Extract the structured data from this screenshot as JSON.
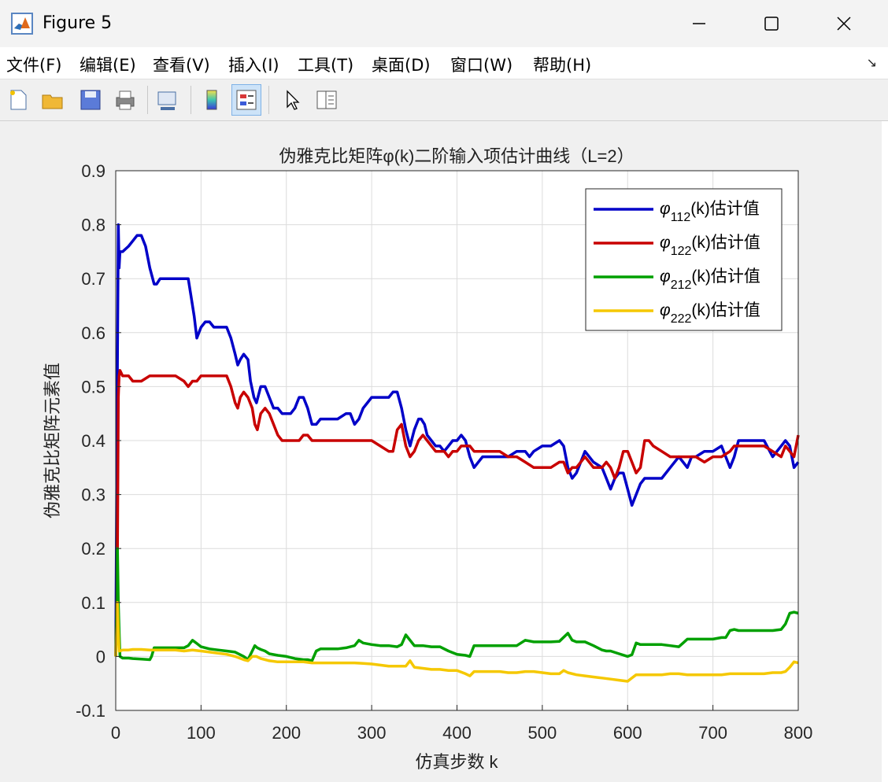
{
  "window": {
    "title": "Figure 5"
  },
  "menu": [
    "文件(F)",
    "编辑(E)",
    "查看(V)",
    "插入(I)",
    "工具(T)",
    "桌面(D)",
    "窗口(W)",
    "帮助(H)"
  ],
  "toolbar": [
    {
      "icon": "new-figure-icon"
    },
    {
      "icon": "open-file-icon"
    },
    {
      "icon": "save-icon"
    },
    {
      "icon": "print-icon"
    },
    {
      "icon": "link-plot-icon"
    },
    {
      "icon": "colorbar-icon"
    },
    {
      "icon": "legend-icon"
    },
    {
      "icon": "pointer-icon"
    },
    {
      "icon": "property-editor-icon"
    }
  ],
  "chart_data": {
    "type": "line",
    "title": "伪雅克比矩阵φ(k)二阶输入项估计曲线（L=2）",
    "xlabel": "仿真步数 k",
    "ylabel": "伪雅克比矩阵元素值",
    "xlim": [
      0,
      800
    ],
    "ylim": [
      -0.1,
      0.9
    ],
    "xticks": [
      "0",
      "100",
      "200",
      "300",
      "400",
      "500",
      "600",
      "700",
      "800"
    ],
    "yticks": [
      "-0.1",
      "0",
      "0.1",
      "0.2",
      "0.3",
      "0.4",
      "0.5",
      "0.6",
      "0.7",
      "0.8",
      "0.9"
    ],
    "grid": true,
    "legend_position": "top-right",
    "series": [
      {
        "name": "φ112(k)估计值",
        "legend_sym": "φ",
        "legend_sub": "112",
        "legend_suffix": "(k)估计值",
        "color": "#0000c8",
        "x": [
          0,
          2,
          3,
          4,
          5,
          8,
          15,
          20,
          25,
          30,
          35,
          40,
          45,
          48,
          52,
          60,
          70,
          80,
          85,
          88,
          92,
          95,
          100,
          105,
          110,
          115,
          120,
          125,
          130,
          135,
          140,
          143,
          146,
          150,
          155,
          158,
          162,
          165,
          170,
          175,
          180,
          185,
          190,
          195,
          200,
          205,
          210,
          215,
          220,
          225,
          230,
          235,
          240,
          250,
          260,
          270,
          275,
          280,
          285,
          290,
          295,
          300,
          310,
          320,
          325,
          330,
          335,
          340,
          345,
          350,
          355,
          358,
          362,
          365,
          370,
          375,
          380,
          385,
          390,
          395,
          400,
          405,
          410,
          415,
          420,
          425,
          430,
          440,
          450,
          460,
          470,
          480,
          485,
          490,
          500,
          510,
          520,
          525,
          530,
          535,
          540,
          550,
          560,
          570,
          575,
          580,
          585,
          590,
          595,
          600,
          605,
          610,
          615,
          620,
          625,
          630,
          640,
          650,
          660,
          665,
          670,
          675,
          680,
          690,
          700,
          710,
          715,
          720,
          725,
          730,
          740,
          750,
          760,
          770,
          780,
          785,
          790,
          795,
          800
        ],
        "y": [
          0,
          0.55,
          0.8,
          0.72,
          0.75,
          0.75,
          0.76,
          0.77,
          0.78,
          0.78,
          0.76,
          0.72,
          0.69,
          0.69,
          0.7,
          0.7,
          0.7,
          0.7,
          0.7,
          0.67,
          0.63,
          0.59,
          0.61,
          0.62,
          0.62,
          0.61,
          0.61,
          0.61,
          0.61,
          0.59,
          0.56,
          0.54,
          0.55,
          0.56,
          0.55,
          0.51,
          0.48,
          0.47,
          0.5,
          0.5,
          0.48,
          0.46,
          0.46,
          0.45,
          0.45,
          0.45,
          0.46,
          0.48,
          0.48,
          0.46,
          0.43,
          0.43,
          0.44,
          0.44,
          0.44,
          0.45,
          0.45,
          0.43,
          0.44,
          0.46,
          0.47,
          0.48,
          0.48,
          0.48,
          0.49,
          0.49,
          0.46,
          0.42,
          0.39,
          0.42,
          0.44,
          0.44,
          0.43,
          0.41,
          0.4,
          0.39,
          0.39,
          0.38,
          0.39,
          0.4,
          0.4,
          0.41,
          0.4,
          0.37,
          0.35,
          0.36,
          0.37,
          0.37,
          0.37,
          0.37,
          0.38,
          0.38,
          0.37,
          0.38,
          0.39,
          0.39,
          0.4,
          0.39,
          0.35,
          0.33,
          0.34,
          0.38,
          0.36,
          0.35,
          0.33,
          0.31,
          0.33,
          0.34,
          0.34,
          0.31,
          0.28,
          0.3,
          0.32,
          0.33,
          0.33,
          0.33,
          0.33,
          0.35,
          0.37,
          0.36,
          0.35,
          0.37,
          0.37,
          0.38,
          0.38,
          0.39,
          0.37,
          0.35,
          0.37,
          0.4,
          0.4,
          0.4,
          0.4,
          0.37,
          0.39,
          0.4,
          0.39,
          0.35,
          0.36
        ]
      },
      {
        "name": "φ122(k)估计值",
        "legend_sym": "φ",
        "legend_sub": "122",
        "legend_suffix": "(k)估计值",
        "color": "#c80000",
        "x": [
          0,
          2,
          3,
          4,
          5,
          8,
          15,
          20,
          30,
          40,
          45,
          50,
          60,
          70,
          80,
          85,
          90,
          95,
          100,
          110,
          120,
          125,
          130,
          135,
          140,
          143,
          146,
          150,
          155,
          160,
          163,
          166,
          170,
          175,
          180,
          185,
          190,
          195,
          200,
          205,
          210,
          215,
          220,
          225,
          230,
          235,
          240,
          250,
          260,
          270,
          280,
          290,
          300,
          310,
          320,
          325,
          330,
          335,
          340,
          345,
          350,
          355,
          360,
          365,
          370,
          375,
          380,
          385,
          390,
          395,
          400,
          405,
          410,
          415,
          420,
          430,
          440,
          450,
          460,
          470,
          480,
          490,
          500,
          510,
          520,
          525,
          530,
          535,
          540,
          550,
          560,
          570,
          575,
          580,
          585,
          590,
          595,
          600,
          605,
          610,
          615,
          620,
          625,
          630,
          640,
          650,
          660,
          670,
          680,
          690,
          700,
          710,
          720,
          725,
          730,
          740,
          750,
          760,
          770,
          780,
          785,
          790,
          795,
          800
        ],
        "y": [
          0,
          0.19,
          0.48,
          0.52,
          0.53,
          0.52,
          0.52,
          0.51,
          0.51,
          0.52,
          0.52,
          0.52,
          0.52,
          0.52,
          0.51,
          0.5,
          0.51,
          0.51,
          0.52,
          0.52,
          0.52,
          0.52,
          0.52,
          0.5,
          0.47,
          0.46,
          0.48,
          0.49,
          0.48,
          0.46,
          0.43,
          0.42,
          0.45,
          0.46,
          0.45,
          0.43,
          0.41,
          0.4,
          0.4,
          0.4,
          0.4,
          0.4,
          0.41,
          0.41,
          0.4,
          0.4,
          0.4,
          0.4,
          0.4,
          0.4,
          0.4,
          0.4,
          0.4,
          0.39,
          0.38,
          0.38,
          0.42,
          0.43,
          0.39,
          0.37,
          0.38,
          0.4,
          0.41,
          0.4,
          0.39,
          0.38,
          0.38,
          0.38,
          0.37,
          0.38,
          0.38,
          0.39,
          0.39,
          0.39,
          0.38,
          0.38,
          0.38,
          0.38,
          0.37,
          0.37,
          0.36,
          0.35,
          0.35,
          0.35,
          0.36,
          0.36,
          0.34,
          0.35,
          0.35,
          0.37,
          0.35,
          0.35,
          0.36,
          0.35,
          0.33,
          0.35,
          0.38,
          0.38,
          0.36,
          0.34,
          0.35,
          0.4,
          0.4,
          0.39,
          0.38,
          0.37,
          0.37,
          0.37,
          0.37,
          0.36,
          0.37,
          0.37,
          0.38,
          0.39,
          0.39,
          0.39,
          0.39,
          0.39,
          0.38,
          0.37,
          0.39,
          0.38,
          0.37,
          0.41
        ]
      },
      {
        "name": "φ212(k)估计值",
        "legend_sym": "φ",
        "legend_sub": "212",
        "legend_suffix": "(k)估计值",
        "color": "#00a000",
        "x": [
          0,
          2,
          3,
          4,
          5,
          8,
          15,
          20,
          30,
          40,
          42,
          45,
          50,
          60,
          70,
          80,
          85,
          90,
          95,
          100,
          110,
          120,
          130,
          140,
          150,
          155,
          160,
          163,
          166,
          170,
          175,
          180,
          190,
          200,
          210,
          220,
          225,
          230,
          235,
          240,
          250,
          260,
          270,
          280,
          285,
          290,
          300,
          310,
          320,
          330,
          335,
          340,
          345,
          350,
          360,
          370,
          380,
          390,
          400,
          410,
          415,
          420,
          430,
          440,
          450,
          460,
          470,
          480,
          490,
          500,
          510,
          520,
          530,
          535,
          540,
          550,
          560,
          570,
          575,
          580,
          590,
          600,
          605,
          610,
          615,
          620,
          630,
          640,
          650,
          660,
          665,
          670,
          680,
          690,
          700,
          710,
          715,
          720,
          725,
          730,
          740,
          750,
          760,
          770,
          780,
          785,
          790,
          795,
          800
        ],
        "y": [
          0,
          0.2,
          0.1,
          0.05,
          0.0,
          -0.003,
          -0.003,
          -0.004,
          -0.005,
          -0.006,
          0.0,
          0.016,
          0.016,
          0.016,
          0.016,
          0.016,
          0.02,
          0.03,
          0.024,
          0.018,
          0.014,
          0.012,
          0.01,
          0.008,
          0.0,
          -0.006,
          0.01,
          0.02,
          0.016,
          0.013,
          0.01,
          0.005,
          0.002,
          0.0,
          -0.004,
          -0.006,
          -0.006,
          -0.008,
          0.01,
          0.014,
          0.014,
          0.014,
          0.016,
          0.02,
          0.03,
          0.025,
          0.022,
          0.02,
          0.02,
          0.018,
          0.022,
          0.04,
          0.03,
          0.02,
          0.02,
          0.018,
          0.018,
          0.01,
          0.004,
          0.002,
          0.0,
          0.02,
          0.02,
          0.02,
          0.02,
          0.02,
          0.02,
          0.03,
          0.027,
          0.027,
          0.027,
          0.028,
          0.043,
          0.03,
          0.027,
          0.027,
          0.02,
          0.012,
          0.01,
          0.01,
          0.005,
          0.0,
          0.003,
          0.025,
          0.022,
          0.022,
          0.022,
          0.022,
          0.02,
          0.018,
          0.025,
          0.032,
          0.032,
          0.032,
          0.032,
          0.035,
          0.035,
          0.048,
          0.05,
          0.048,
          0.048,
          0.048,
          0.048,
          0.048,
          0.05,
          0.06,
          0.08,
          0.082,
          0.08
        ]
      },
      {
        "name": "φ222(k)估计值",
        "legend_sym": "φ",
        "legend_sub": "222",
        "legend_suffix": "(k)估计值",
        "color": "#f5c800",
        "x": [
          0,
          2,
          3,
          4,
          5,
          8,
          15,
          20,
          30,
          40,
          50,
          60,
          70,
          80,
          90,
          100,
          110,
          120,
          130,
          140,
          150,
          155,
          160,
          165,
          170,
          180,
          190,
          200,
          210,
          220,
          230,
          240,
          250,
          260,
          270,
          280,
          290,
          300,
          310,
          320,
          330,
          340,
          345,
          350,
          360,
          370,
          380,
          390,
          400,
          410,
          415,
          420,
          430,
          440,
          450,
          460,
          470,
          480,
          490,
          500,
          510,
          520,
          525,
          530,
          540,
          550,
          560,
          570,
          580,
          590,
          600,
          605,
          610,
          620,
          630,
          640,
          650,
          660,
          670,
          680,
          690,
          700,
          710,
          720,
          730,
          740,
          750,
          760,
          770,
          780,
          785,
          790,
          795,
          800
        ],
        "y": [
          0,
          0.1,
          0.05,
          0.01,
          0.01,
          0.012,
          0.012,
          0.013,
          0.013,
          0.012,
          0.012,
          0.012,
          0.012,
          0.01,
          0.012,
          0.01,
          0.008,
          0.006,
          0.004,
          0.0,
          -0.006,
          -0.008,
          0.0,
          0.0,
          -0.004,
          -0.008,
          -0.01,
          -0.01,
          -0.01,
          -0.01,
          -0.012,
          -0.012,
          -0.012,
          -0.012,
          -0.012,
          -0.012,
          -0.013,
          -0.014,
          -0.016,
          -0.018,
          -0.018,
          -0.018,
          -0.008,
          -0.02,
          -0.022,
          -0.024,
          -0.024,
          -0.026,
          -0.026,
          -0.032,
          -0.036,
          -0.028,
          -0.028,
          -0.028,
          -0.028,
          -0.03,
          -0.03,
          -0.028,
          -0.028,
          -0.03,
          -0.032,
          -0.032,
          -0.026,
          -0.03,
          -0.034,
          -0.036,
          -0.038,
          -0.04,
          -0.042,
          -0.044,
          -0.046,
          -0.04,
          -0.034,
          -0.034,
          -0.034,
          -0.034,
          -0.032,
          -0.032,
          -0.034,
          -0.034,
          -0.034,
          -0.034,
          -0.034,
          -0.032,
          -0.032,
          -0.032,
          -0.032,
          -0.032,
          -0.03,
          -0.03,
          -0.028,
          -0.02,
          -0.01,
          -0.012
        ]
      }
    ]
  }
}
